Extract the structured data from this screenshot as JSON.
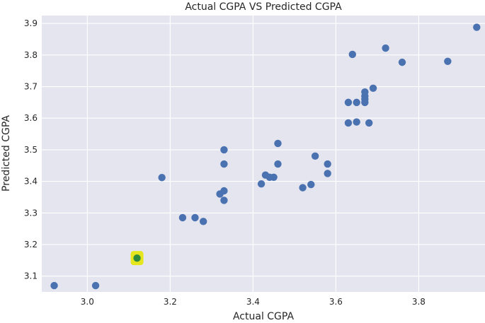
{
  "chart_data": {
    "type": "scatter",
    "title": "Actual CGPA VS Predicted CGPA",
    "xlabel": "Actual CGPA",
    "ylabel": "Predicted CGPA",
    "xlim": [
      2.89,
      3.96
    ],
    "ylim": [
      3.05,
      3.925
    ],
    "xticks": [
      3.0,
      3.2,
      3.4,
      3.6,
      3.8
    ],
    "yticks": [
      3.1,
      3.2,
      3.3,
      3.4,
      3.5,
      3.6,
      3.7,
      3.8,
      3.9
    ],
    "tick_labels_x": [
      "3.0",
      "3.2",
      "3.4",
      "3.6",
      "3.8"
    ],
    "tick_labels_y": [
      "3.1",
      "3.2",
      "3.3",
      "3.4",
      "3.5",
      "3.6",
      "3.7",
      "3.8",
      "3.9"
    ],
    "grid": true,
    "background": "#e5e5ef",
    "point_color": "#4a72b0",
    "highlight_color": "#2e8b3e",
    "highlight_halo": "#e6e61e",
    "points": [
      {
        "x": 2.92,
        "y": 3.07
      },
      {
        "x": 3.02,
        "y": 3.07
      },
      {
        "x": 3.12,
        "y": 3.157,
        "highlight": true
      },
      {
        "x": 3.18,
        "y": 3.412
      },
      {
        "x": 3.23,
        "y": 3.285
      },
      {
        "x": 3.26,
        "y": 3.285
      },
      {
        "x": 3.28,
        "y": 3.273
      },
      {
        "x": 3.32,
        "y": 3.36
      },
      {
        "x": 3.33,
        "y": 3.37
      },
      {
        "x": 3.33,
        "y": 3.34
      },
      {
        "x": 3.33,
        "y": 3.455
      },
      {
        "x": 3.33,
        "y": 3.5
      },
      {
        "x": 3.42,
        "y": 3.392
      },
      {
        "x": 3.43,
        "y": 3.42
      },
      {
        "x": 3.44,
        "y": 3.413
      },
      {
        "x": 3.45,
        "y": 3.413
      },
      {
        "x": 3.46,
        "y": 3.455
      },
      {
        "x": 3.46,
        "y": 3.52
      },
      {
        "x": 3.52,
        "y": 3.38
      },
      {
        "x": 3.54,
        "y": 3.39
      },
      {
        "x": 3.55,
        "y": 3.48
      },
      {
        "x": 3.58,
        "y": 3.455
      },
      {
        "x": 3.58,
        "y": 3.425
      },
      {
        "x": 3.63,
        "y": 3.585
      },
      {
        "x": 3.63,
        "y": 3.65
      },
      {
        "x": 3.64,
        "y": 3.802
      },
      {
        "x": 3.65,
        "y": 3.65
      },
      {
        "x": 3.65,
        "y": 3.588
      },
      {
        "x": 3.67,
        "y": 3.65
      },
      {
        "x": 3.67,
        "y": 3.66
      },
      {
        "x": 3.67,
        "y": 3.67
      },
      {
        "x": 3.67,
        "y": 3.683
      },
      {
        "x": 3.68,
        "y": 3.585
      },
      {
        "x": 3.69,
        "y": 3.695
      },
      {
        "x": 3.72,
        "y": 3.822
      },
      {
        "x": 3.76,
        "y": 3.777
      },
      {
        "x": 3.87,
        "y": 3.78
      },
      {
        "x": 3.94,
        "y": 3.888
      }
    ]
  }
}
